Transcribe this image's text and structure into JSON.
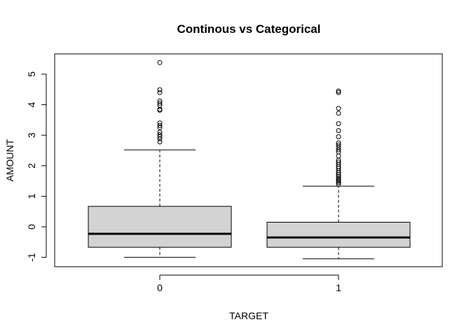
{
  "chart_data": {
    "type": "boxplot",
    "title": "Continous vs Categorical",
    "xlabel": "TARGET",
    "ylabel": "AMOUNT",
    "ylim": [
      -1.3,
      5.8
    ],
    "yticks": [
      -1,
      0,
      1,
      2,
      3,
      4,
      5
    ],
    "categories": [
      "0",
      "1"
    ],
    "box_fill": "#d3d3d3",
    "boxes": [
      {
        "category": "0",
        "lower_whisker": -1.0,
        "q1": -0.67,
        "median": -0.23,
        "q3": 0.67,
        "upper_whisker": 2.52,
        "outliers": [
          5.38,
          4.49,
          4.4,
          4.12,
          4.05,
          3.98,
          3.85,
          3.82,
          3.4,
          3.32,
          3.25,
          3.1,
          3.02,
          2.95,
          2.88,
          2.78
        ]
      },
      {
        "category": "1",
        "lower_whisker": -1.05,
        "q1": -0.67,
        "median": -0.35,
        "q3": 0.15,
        "upper_whisker": 1.33,
        "outliers": [
          4.45,
          4.4,
          3.88,
          3.72,
          3.38,
          3.15,
          2.95,
          2.75,
          2.68,
          2.6,
          2.52,
          2.45,
          2.32,
          2.18,
          2.12,
          2.05,
          1.98,
          1.92,
          1.85,
          1.78,
          1.72,
          1.66,
          1.6,
          1.55,
          1.5,
          1.45,
          1.4
        ]
      }
    ]
  }
}
